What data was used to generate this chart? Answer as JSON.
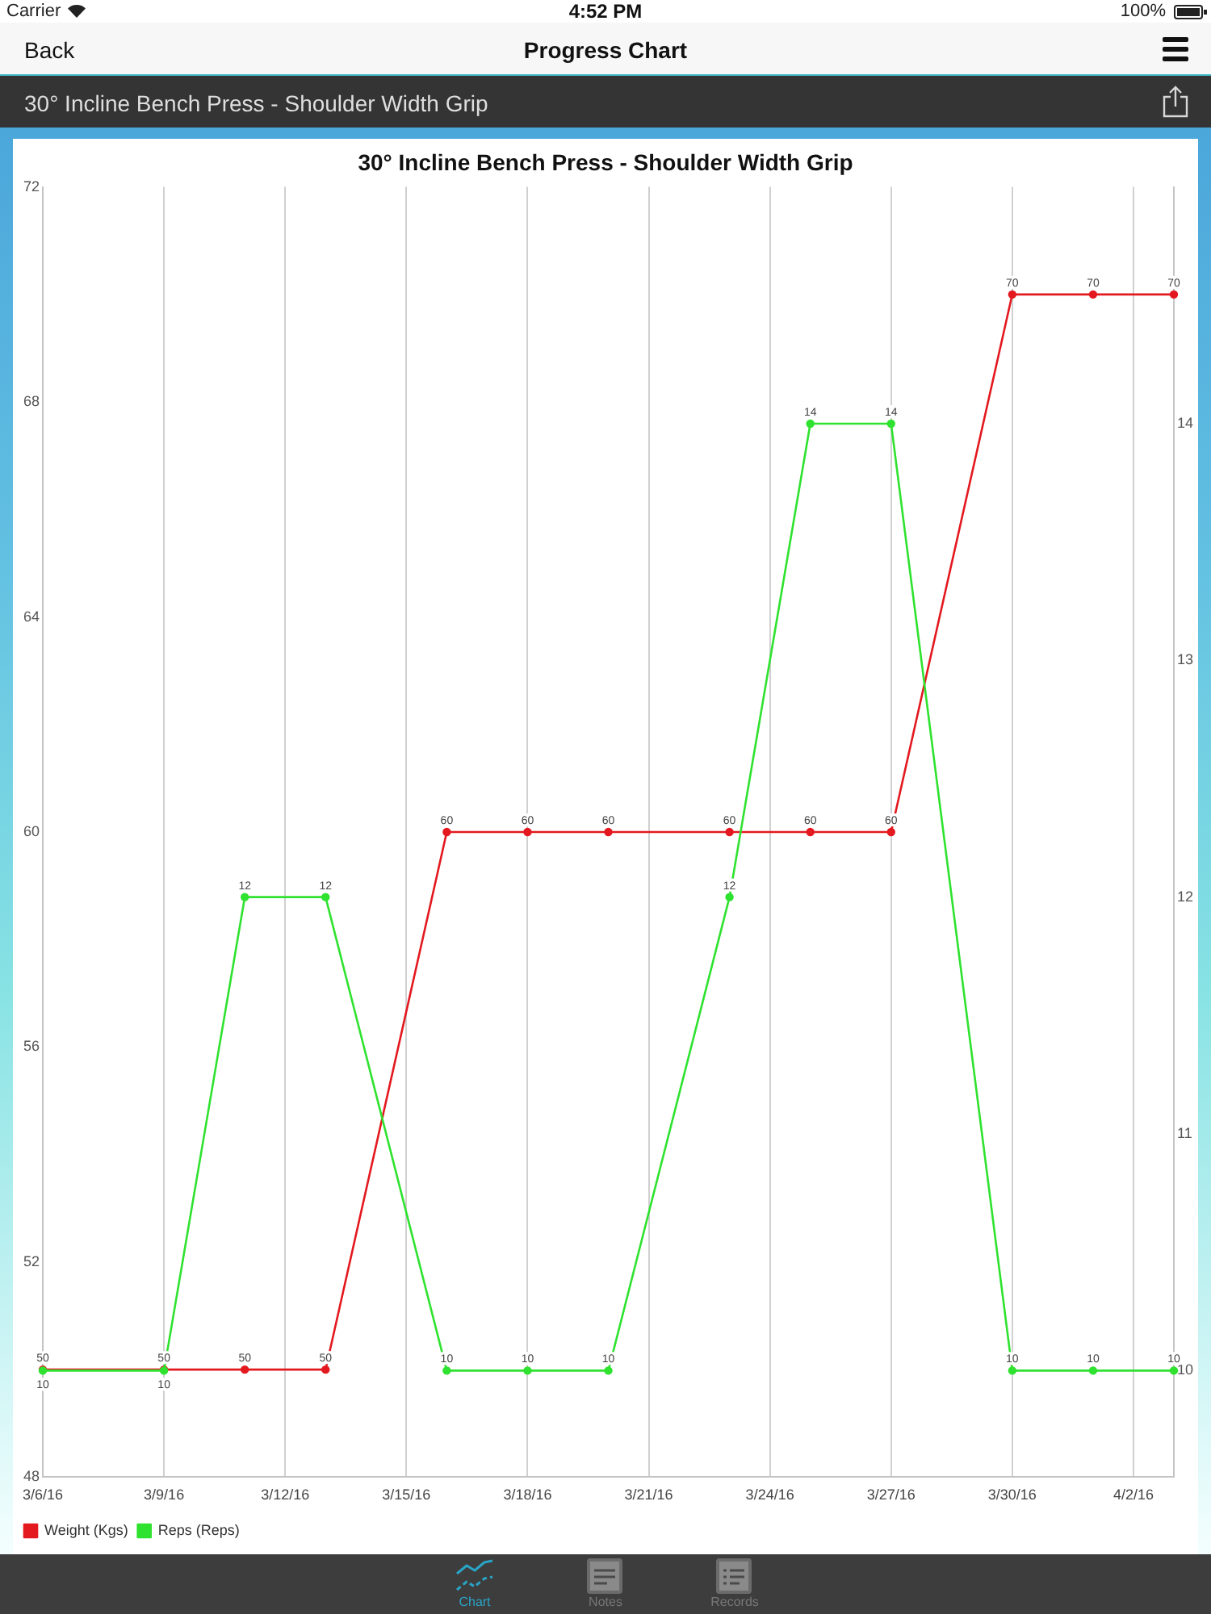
{
  "chart_data": {
    "type": "line",
    "title": "30° Incline Bench Press - Shoulder Width Grip",
    "x": [
      "--03-06",
      "--03-09",
      "--03-11",
      "--03-13",
      "--03-16",
      "--03-18",
      "--03-20",
      "--03-23",
      "--03-25",
      "--03-27",
      "--03-30",
      "--04-01",
      "--04-03"
    ],
    "series": [
      {
        "name": "Weight (Kgs)",
        "color": "#e3191f",
        "values": [
          50,
          50,
          50,
          50,
          60,
          60,
          60,
          60,
          60,
          60,
          70,
          70,
          70
        ]
      },
      {
        "name": "Reps (Reps)",
        "color": "#2fe22f",
        "axis": "y2",
        "values": [
          10,
          10,
          12,
          12,
          10,
          10,
          10,
          12,
          14,
          14,
          10,
          10,
          10
        ]
      }
    ],
    "xlim": [
      "--03-06",
      "--04-03"
    ],
    "xticks": [
      {
        "value": "--03-06",
        "label": "3/6/16"
      },
      {
        "value": "--03-09",
        "label": "3/9/16"
      },
      {
        "value": "--03-12",
        "label": "3/12/16"
      },
      {
        "value": "--03-15",
        "label": "3/15/16"
      },
      {
        "value": "--03-18",
        "label": "3/18/16"
      },
      {
        "value": "--03-21",
        "label": "3/21/16"
      },
      {
        "value": "--03-24",
        "label": "3/24/16"
      },
      {
        "value": "--03-27",
        "label": "3/27/16"
      },
      {
        "value": "--03-30",
        "label": "3/30/16"
      },
      {
        "value": "--04-02",
        "label": "4/2/16"
      }
    ],
    "ylim": [
      48,
      72
    ],
    "yticks": [
      48,
      52,
      56,
      60,
      64,
      68,
      72
    ],
    "y2lim": [
      9.55,
      15
    ],
    "y2ticks": [
      10,
      11,
      12,
      13,
      14
    ],
    "grid": "x",
    "legend": "bottom left",
    "marker": "circle",
    "line_style": "solid",
    "data_labels": true,
    "annotations": [
      "Carrier",
      "4:52 PM",
      "100%",
      "Back",
      "Progress Chart",
      "30° Incline Bench Press - Shoulder Width Grip",
      "Chart",
      "Notes",
      "Records"
    ]
  }
}
